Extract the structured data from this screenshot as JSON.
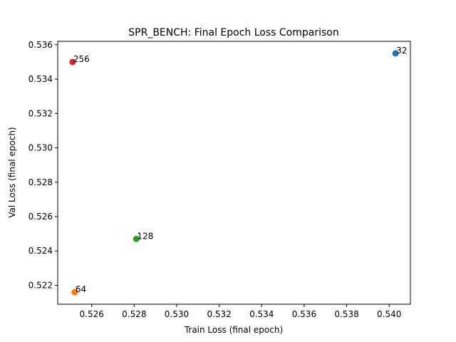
{
  "chart_data": {
    "type": "scatter",
    "title": "SPR_BENCH: Final Epoch Loss Comparison",
    "xlabel": "Train Loss (final epoch)",
    "ylabel": "Val Loss (final epoch)",
    "xlim": [
      0.5244,
      0.541
    ],
    "ylim": [
      0.5209,
      0.5362
    ],
    "xticks": [
      "0.526",
      "0.528",
      "0.530",
      "0.532",
      "0.534",
      "0.536",
      "0.538",
      "0.540"
    ],
    "yticks": [
      "0.522",
      "0.524",
      "0.526",
      "0.528",
      "0.530",
      "0.532",
      "0.534",
      "0.536"
    ],
    "grid": false,
    "points": [
      {
        "label": "32",
        "x": 0.5403,
        "y": 0.5355,
        "color": "#1f77b4"
      },
      {
        "label": "64",
        "x": 0.5252,
        "y": 0.5216,
        "color": "#ff7f0e"
      },
      {
        "label": "128",
        "x": 0.5281,
        "y": 0.5247,
        "color": "#2ca02c"
      },
      {
        "label": "256",
        "x": 0.5251,
        "y": 0.535,
        "color": "#d62728"
      }
    ]
  }
}
